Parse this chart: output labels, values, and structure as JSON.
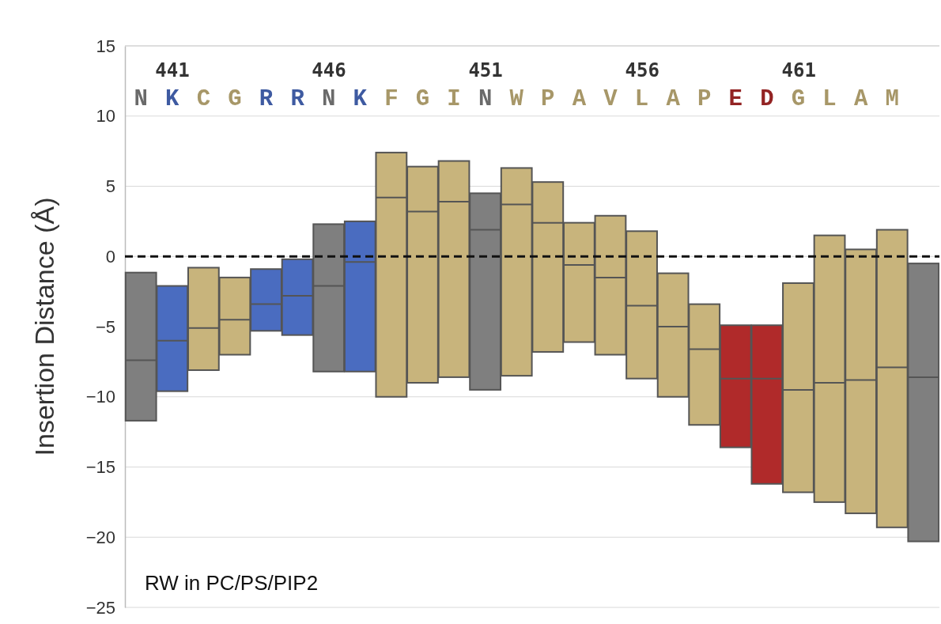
{
  "chart_data": {
    "type": "box",
    "ylabel": "Insertion Distance (Å)",
    "categories": [
      "N",
      "K",
      "C",
      "G",
      "R",
      "R",
      "N",
      "K",
      "F",
      "G",
      "I",
      "N",
      "W",
      "P",
      "A",
      "V",
      "L",
      "A",
      "P",
      "E",
      "D",
      "G",
      "L",
      "A",
      "M",
      null
    ],
    "colors": [
      "#7f7f7f",
      "#4a6cc0",
      "#c8b47c",
      "#c8b47c",
      "#4a6cc0",
      "#4a6cc0",
      "#7f7f7f",
      "#4a6cc0",
      "#c8b47c",
      "#c8b47c",
      "#c8b47c",
      "#7f7f7f",
      "#c8b47c",
      "#c8b47c",
      "#c8b47c",
      "#c8b47c",
      "#c8b47c",
      "#c8b47c",
      "#c8b47c",
      "#b02a2a",
      "#b02a2a",
      "#c8b47c",
      "#c8b47c",
      "#c8b47c",
      "#c8b47c",
      "#7f7f7f"
    ],
    "boxes": [
      {
        "low": -11.7,
        "q1": -11.7,
        "median": -7.4,
        "q3": -1.15,
        "high": -1.15
      },
      {
        "low": -9.6,
        "q1": -9.6,
        "median": -6.0,
        "q3": -2.1,
        "high": -2.1
      },
      {
        "low": -8.1,
        "q1": -8.1,
        "median": -5.1,
        "q3": -0.8,
        "high": -0.8
      },
      {
        "low": -7.0,
        "q1": -7.0,
        "median": -4.5,
        "q3": -1.5,
        "high": -1.5
      },
      {
        "low": -5.3,
        "q1": -5.3,
        "median": -3.4,
        "q3": -0.9,
        "high": -0.9
      },
      {
        "low": -5.6,
        "q1": -5.6,
        "median": -2.8,
        "q3": -0.2,
        "high": -0.2
      },
      {
        "low": -8.2,
        "q1": -8.2,
        "median": -2.1,
        "q3": 2.3,
        "high": 2.3
      },
      {
        "low": -8.2,
        "q1": -8.2,
        "median": -0.4,
        "q3": 2.5,
        "high": 2.5
      },
      {
        "low": -10.0,
        "q1": -10.0,
        "median": 4.2,
        "q3": 7.4,
        "high": 7.4
      },
      {
        "low": -9.0,
        "q1": -9.0,
        "median": 3.2,
        "q3": 6.4,
        "high": 6.4
      },
      {
        "low": -8.6,
        "q1": -8.6,
        "median": 3.9,
        "q3": 6.8,
        "high": 6.8
      },
      {
        "low": -9.5,
        "q1": -9.5,
        "median": 1.9,
        "q3": 4.5,
        "high": 4.5
      },
      {
        "low": -8.5,
        "q1": -8.5,
        "median": 3.7,
        "q3": 6.3,
        "high": 6.3
      },
      {
        "low": -6.8,
        "q1": -6.8,
        "median": 2.4,
        "q3": 5.3,
        "high": 5.3
      },
      {
        "low": -6.1,
        "q1": -6.1,
        "median": -0.6,
        "q3": 2.4,
        "high": 2.4
      },
      {
        "low": -7.0,
        "q1": -7.0,
        "median": -1.5,
        "q3": 2.9,
        "high": 2.9
      },
      {
        "low": -8.7,
        "q1": -8.7,
        "median": -3.5,
        "q3": 1.8,
        "high": 1.8
      },
      {
        "low": -10.0,
        "q1": -10.0,
        "median": -5.0,
        "q3": -1.2,
        "high": -1.2
      },
      {
        "low": -12.0,
        "q1": -12.0,
        "median": -6.6,
        "q3": -3.4,
        "high": -3.4
      },
      {
        "low": -13.6,
        "q1": -13.6,
        "median": -8.7,
        "q3": -4.9,
        "high": -4.9
      },
      {
        "low": -16.2,
        "q1": -16.2,
        "median": -8.7,
        "q3": -4.9,
        "high": -4.9
      },
      {
        "low": -16.8,
        "q1": -16.8,
        "median": -9.5,
        "q3": -1.9,
        "high": -1.9
      },
      {
        "low": -17.5,
        "q1": -17.5,
        "median": -9.0,
        "q3": 1.5,
        "high": 1.5
      },
      {
        "low": -18.3,
        "q1": -18.3,
        "median": -8.8,
        "q3": 0.5,
        "high": 0.5
      },
      {
        "low": -19.3,
        "q1": -19.3,
        "median": -7.9,
        "q3": 1.9,
        "high": 1.9
      },
      {
        "low": -20.3,
        "q1": -20.3,
        "median": -8.6,
        "q3": -0.5,
        "high": -0.5
      }
    ],
    "ylim": [
      -25,
      15
    ],
    "yticks": [
      -25,
      -20,
      -15,
      -10,
      -5,
      0,
      5,
      10,
      15
    ],
    "x2lim": [
      439.5,
      465.5
    ],
    "x2ticks": [
      441,
      446,
      451,
      456,
      461
    ],
    "grid": "y",
    "ref_lines": [
      {
        "axis": "y",
        "value": 0,
        "color": "#111111",
        "line_style": "dashed"
      }
    ],
    "annotations": [
      "RW in PC/PS/PIP2"
    ]
  }
}
